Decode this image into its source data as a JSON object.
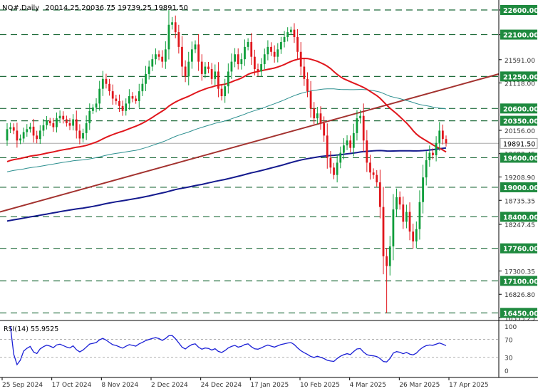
{
  "header": {
    "symbol": "NQ#,Daily",
    "ohlc": "20014.25 20036.75 19739.25 19891.50"
  },
  "colors": {
    "bull": "#0e9d3a",
    "bear": "#e0161c",
    "sma50": "#e0161c",
    "sma100": "#2c8f8f",
    "sma200": "#141a8e",
    "trendline": "#a3322f",
    "levels": "#1f6b3a",
    "level_label_bg": "#1f8a3f",
    "current_label_bg": "#ffffff",
    "rsi": "#1a1fd6",
    "grid_text": "#333333"
  },
  "chart_data": {
    "type": "candlestick",
    "price_scale": {
      "min": 16353,
      "max": 22600,
      "ticks": [
        "22600.00",
        "22098.45",
        "21591.00",
        "21118.00",
        "20156.00",
        "19683.45",
        "19208.90",
        "18735.35",
        "18247.45",
        "17300.35",
        "16826.80",
        "16353.25"
      ]
    },
    "levels": [
      {
        "value": 22600,
        "label": "22600.00"
      },
      {
        "value": 22100,
        "label": "22100.00"
      },
      {
        "value": 21250,
        "label": "21250.00"
      },
      {
        "value": 20600,
        "label": "20600.00"
      },
      {
        "value": 20350,
        "label": "20350.00"
      },
      {
        "value": 19600,
        "label": "19600.00"
      },
      {
        "value": 19000,
        "label": "19000.00"
      },
      {
        "value": 18400,
        "label": "18400.00"
      },
      {
        "value": 17760,
        "label": "17760.00"
      },
      {
        "value": 17100,
        "label": "17100.00"
      },
      {
        "value": 16450,
        "label": "16450.00"
      }
    ],
    "current_price": {
      "value": 19891.5,
      "label": "19891.50"
    },
    "x_labels": [
      "25 Sep 2024",
      "17 Oct 2024",
      "8 Nov 2024",
      "2 Dec 2024",
      "24 Dec 2024",
      "17 Jan 2025",
      "10 Feb 2025",
      "4 Mar 2025",
      "26 Mar 2025",
      "17 Apr 2025"
    ],
    "closes": [
      20180,
      20220,
      20150,
      19950,
      19990,
      20120,
      20180,
      20230,
      20050,
      19980,
      20150,
      20260,
      20350,
      20300,
      20220,
      20400,
      20450,
      20380,
      20300,
      20250,
      20380,
      20150,
      19990,
      20100,
      20300,
      20550,
      20620,
      20700,
      21000,
      21200,
      21100,
      20950,
      20800,
      20750,
      20650,
      20550,
      20700,
      20850,
      20800,
      20750,
      20950,
      21100,
      21300,
      21450,
      21600,
      21700,
      21650,
      21550,
      21800,
      22300,
      22350,
      22150,
      21850,
      21450,
      21250,
      21550,
      21800,
      21900,
      21550,
      21300,
      21450,
      21400,
      21200,
      21350,
      21000,
      20850,
      21050,
      21350,
      21550,
      21700,
      21500,
      21600,
      21850,
      21950,
      21650,
      21400,
      21350,
      21500,
      21700,
      21850,
      21750,
      21650,
      21800,
      21950,
      22050,
      22150,
      22200,
      22050,
      21750,
      21450,
      21200,
      20950,
      20600,
      20400,
      20500,
      20300,
      20050,
      19600,
      19400,
      19250,
      19500,
      19700,
      19850,
      19950,
      19800,
      20100,
      20400,
      20450,
      19950,
      19500,
      19300,
      19250,
      19100,
      18600,
      17600,
      17400,
      17800,
      18550,
      18800,
      18650,
      18300,
      18500,
      18100,
      17900,
      18150,
      18700,
      19200,
      19550,
      19700,
      19650,
      19900,
      20150,
      19980,
      19891.5
    ],
    "rsi": {
      "label": "RSI(14) 55.9525",
      "period": 14,
      "value": 55.9525,
      "range": [
        0,
        100
      ],
      "ticks": [
        "100",
        "70",
        "30",
        "0"
      ],
      "levels": [
        70,
        30
      ]
    }
  }
}
